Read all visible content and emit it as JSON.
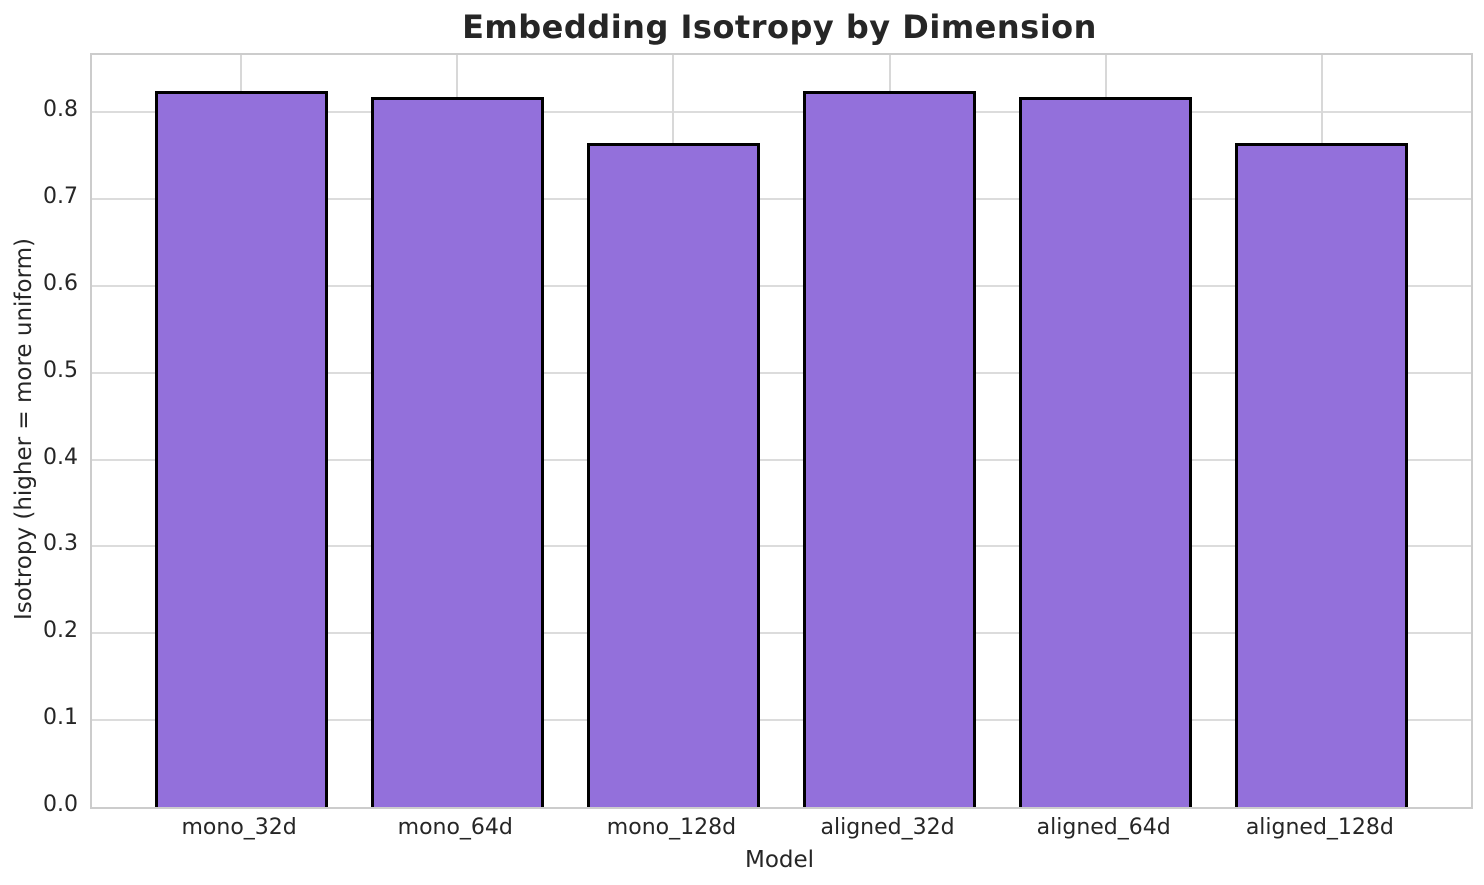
{
  "page": {
    "title": "Embedding Isotropy by Dimension"
  },
  "chart_data": {
    "type": "bar",
    "title": "Embedding Isotropy by Dimension",
    "xlabel": "Model",
    "ylabel": "Isotropy (higher = more uniform)",
    "categories": [
      "mono_32d",
      "mono_64d",
      "mono_128d",
      "aligned_32d",
      "aligned_64d",
      "aligned_128d"
    ],
    "values": [
      0.825,
      0.818,
      0.765,
      0.825,
      0.818,
      0.765
    ],
    "yticks": [
      0.0,
      0.1,
      0.2,
      0.3,
      0.4,
      0.5,
      0.6,
      0.7,
      0.8
    ],
    "ytick_decimals": 1,
    "ylim": [
      0,
      0.866
    ],
    "xlim": [
      -0.69,
      5.69
    ],
    "bar_width_units": 0.8,
    "grid": true,
    "legend_position": "none",
    "colors": {
      "bar_fill": "#9370DB",
      "bar_edge": "#000000",
      "grid_h": "#dcdcdc",
      "grid_v": "#d8d8d8",
      "spine": "#cccccc",
      "text": "#262626",
      "background": "#ffffff"
    }
  }
}
